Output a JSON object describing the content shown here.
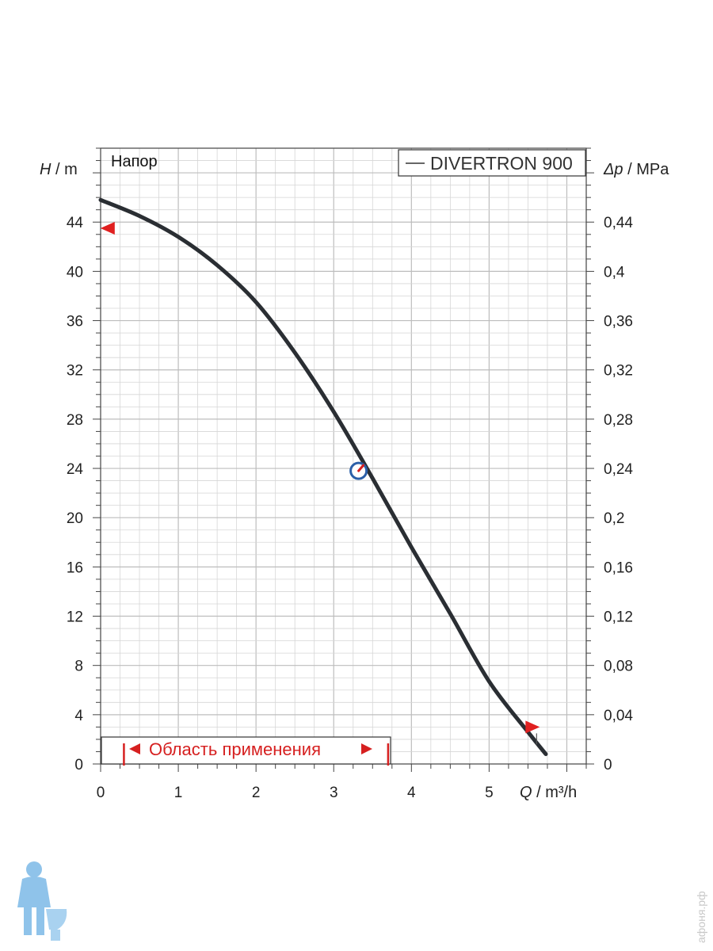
{
  "chart_data": {
    "type": "line",
    "panel_label": "Напор",
    "xlabel_symbol": "Q",
    "xlabel_unit": " / m³/h",
    "ylabel_left_symbol": "H",
    "ylabel_left_unit": " / m",
    "ylabel_right_symbol": "Δp",
    "ylabel_right_unit": " / MPa",
    "xlim": [
      0,
      6.25
    ],
    "ylim": [
      0,
      50
    ],
    "x_ticks": [
      "0",
      "1",
      "2",
      "3",
      "4",
      "5"
    ],
    "y_ticks_left": [
      "0",
      "4",
      "8",
      "12",
      "16",
      "20",
      "24",
      "28",
      "32",
      "36",
      "40",
      "44"
    ],
    "y_ticks_right": [
      "0",
      "0,04",
      "0,08",
      "0,12",
      "0,16",
      "0,2",
      "0,24",
      "0,28",
      "0,32",
      "0,36",
      "0,4",
      "0,44"
    ],
    "grid": true,
    "series": [
      {
        "name": "DIVERTRON 900",
        "x": [
          0,
          0.5,
          1.0,
          1.5,
          2.0,
          2.5,
          3.0,
          3.5,
          4.0,
          4.5,
          5.0,
          5.5,
          5.73
        ],
        "y": [
          45.8,
          44.5,
          42.8,
          40.5,
          37.5,
          33.4,
          28.6,
          23.2,
          17.6,
          12.2,
          6.7,
          2.6,
          0.8
        ]
      }
    ],
    "legend_position": "top-right",
    "application_range": {
      "label": "Область применения",
      "x_start": 0.3,
      "x_end": 3.7
    },
    "markers": [
      {
        "type": "triangle-left",
        "x": 0.1,
        "y": 43.5,
        "color": "#e02020"
      },
      {
        "type": "triangle-right",
        "x": 5.55,
        "y": 3.0,
        "color": "#e02020"
      },
      {
        "type": "gauge-icon",
        "x": 3.32,
        "y": 23.8,
        "color": "#2b5fa8"
      }
    ]
  },
  "colors": {
    "curve": "#2a2e33",
    "grid": "#d6d6d6",
    "axis": "#444444",
    "accent_red": "#d62020",
    "gauge_blue": "#2b5fa8"
  },
  "watermark": "афоня.рф"
}
